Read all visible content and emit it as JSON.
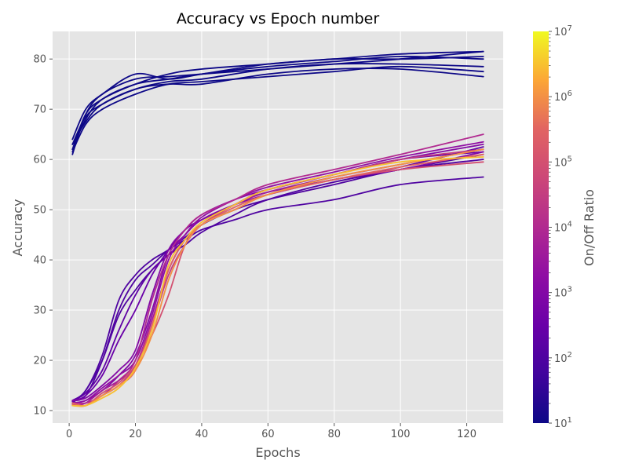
{
  "chart_data": {
    "type": "line",
    "title": "Accuracy vs Epoch number",
    "xlabel": "Epochs",
    "ylabel": "Accuracy",
    "xlim": [
      -5,
      131
    ],
    "ylim": [
      7.5,
      85.5
    ],
    "xticks": [
      0,
      20,
      40,
      60,
      80,
      100,
      120
    ],
    "yticks": [
      10,
      20,
      30,
      40,
      50,
      60,
      70,
      80
    ],
    "grid": true,
    "style": "ggplot",
    "colorbar": {
      "label": "On/Off Ratio",
      "scale": "log",
      "range": [
        10,
        10000000
      ],
      "tick_exponents": [
        1,
        2,
        3,
        4,
        5,
        6,
        7
      ],
      "tick_base": "10",
      "colormap": "plasma"
    },
    "series": [
      {
        "onoff": 10,
        "x": [
          1,
          5,
          10,
          20,
          30,
          40,
          60,
          80,
          100,
          125
        ],
        "y": [
          61,
          69,
          73,
          76,
          76.5,
          77,
          78,
          79,
          80,
          81.5
        ]
      },
      {
        "onoff": 10,
        "x": [
          1,
          5,
          10,
          20,
          30,
          40,
          60,
          80,
          100,
          125
        ],
        "y": [
          62,
          68,
          72,
          75,
          76,
          77,
          78.5,
          79.5,
          80.5,
          80
        ]
      },
      {
        "onoff": 10,
        "x": [
          1,
          5,
          10,
          20,
          30,
          40,
          60,
          80,
          100,
          125
        ],
        "y": [
          63,
          68.5,
          71,
          74,
          75.5,
          76,
          78,
          79,
          79,
          78.5
        ]
      },
      {
        "onoff": 10,
        "x": [
          1,
          5,
          10,
          20,
          30,
          40,
          60,
          80,
          100,
          125
        ],
        "y": [
          64,
          70,
          73,
          77,
          76,
          77,
          79,
          80,
          81,
          81.5
        ]
      },
      {
        "onoff": 10,
        "x": [
          1,
          5,
          10,
          20,
          30,
          40,
          60,
          80,
          100,
          125
        ],
        "y": [
          61.5,
          67,
          70,
          73,
          75,
          75.5,
          76.5,
          77.5,
          78.5,
          77.5
        ]
      },
      {
        "onoff": 10,
        "x": [
          1,
          5,
          10,
          20,
          30,
          40,
          60,
          80,
          100,
          125
        ],
        "y": [
          63,
          67.5,
          71,
          74,
          75,
          75,
          77,
          78,
          78,
          76.5
        ]
      },
      {
        "onoff": 10,
        "x": [
          1,
          5,
          10,
          20,
          30,
          40,
          60,
          80,
          100,
          125
        ],
        "y": [
          62,
          69,
          72,
          75,
          77,
          78,
          79,
          80,
          80,
          80.5
        ]
      },
      {
        "onoff": 100,
        "x": [
          1,
          5,
          10,
          15,
          20,
          25,
          30,
          35,
          40,
          50,
          60,
          80,
          100,
          125
        ],
        "y": [
          12,
          13,
          20,
          30,
          36,
          39,
          42,
          44,
          46,
          48,
          50,
          52,
          55,
          56.5
        ]
      },
      {
        "onoff": 100,
        "x": [
          1,
          5,
          10,
          15,
          20,
          25,
          30,
          35,
          40,
          50,
          60,
          80,
          100,
          125
        ],
        "y": [
          12,
          14,
          21,
          32,
          37,
          40,
          42,
          44.5,
          47,
          50,
          52,
          55,
          58,
          60
        ]
      },
      {
        "onoff": 100,
        "x": [
          1,
          5,
          10,
          15,
          20,
          25,
          30,
          35,
          40,
          50,
          60,
          80,
          100,
          125
        ],
        "y": [
          11.5,
          14,
          20,
          29,
          34,
          38,
          41,
          43,
          45.5,
          49,
          52,
          55.5,
          58,
          61
        ]
      },
      {
        "onoff": 200,
        "x": [
          1,
          5,
          10,
          15,
          20,
          25,
          30,
          35,
          40,
          50,
          60,
          80,
          100,
          125
        ],
        "y": [
          12,
          13.5,
          18,
          26,
          33,
          38,
          41,
          44,
          47,
          51,
          53.5,
          56,
          58.5,
          62.5
        ]
      },
      {
        "onoff": 300,
        "x": [
          1,
          5,
          10,
          15,
          20,
          25,
          30,
          35,
          40,
          50,
          60,
          80,
          100,
          125
        ],
        "y": [
          11.8,
          13,
          17,
          24,
          30,
          37,
          42,
          46,
          48,
          51,
          54,
          57,
          60,
          61.5
        ]
      },
      {
        "onoff": 1000,
        "x": [
          1,
          5,
          10,
          15,
          20,
          25,
          30,
          35,
          40,
          50,
          60,
          80,
          100,
          125
        ],
        "y": [
          12,
          12.5,
          15,
          18,
          22,
          33,
          42,
          46,
          49,
          52,
          54,
          57,
          60,
          63
        ]
      },
      {
        "onoff": 1000,
        "x": [
          1,
          5,
          10,
          15,
          20,
          25,
          30,
          35,
          40,
          50,
          60,
          80,
          100,
          125
        ],
        "y": [
          11.5,
          12,
          14,
          17,
          21,
          30,
          41,
          45,
          48,
          51,
          53,
          56,
          58,
          61.5
        ]
      },
      {
        "onoff": 2000,
        "x": [
          1,
          5,
          10,
          15,
          20,
          25,
          30,
          35,
          40,
          50,
          60,
          80,
          100,
          125
        ],
        "y": [
          11.5,
          12,
          14.5,
          17,
          20,
          29,
          40,
          45,
          48.5,
          52,
          54.5,
          57.5,
          60.5,
          63.5
        ]
      },
      {
        "onoff": 5000,
        "x": [
          1,
          5,
          10,
          15,
          20,
          25,
          30,
          35,
          40,
          50,
          60,
          80,
          100,
          125
        ],
        "y": [
          11,
          11.5,
          14,
          16,
          19,
          28,
          38,
          44,
          47,
          51,
          53.5,
          56.5,
          59,
          62
        ]
      },
      {
        "onoff": 10000,
        "x": [
          1,
          5,
          10,
          15,
          20,
          25,
          30,
          35,
          40,
          50,
          60,
          80,
          100,
          125
        ],
        "y": [
          11.5,
          11.5,
          13,
          16,
          20,
          32,
          41,
          46,
          49,
          52,
          55,
          58,
          61,
          65
        ]
      },
      {
        "onoff": 30000,
        "x": [
          1,
          5,
          10,
          15,
          20,
          25,
          30,
          35,
          40,
          50,
          60,
          80,
          100,
          125
        ],
        "y": [
          11.5,
          11,
          13,
          15,
          19,
          27,
          37,
          43,
          47,
          51,
          54,
          57,
          60,
          62
        ]
      },
      {
        "onoff": 100000,
        "x": [
          1,
          5,
          10,
          15,
          20,
          25,
          30,
          35,
          40,
          50,
          60,
          80,
          100,
          125
        ],
        "y": [
          11.2,
          11,
          13.5,
          15.5,
          19,
          25,
          33,
          43,
          47,
          50,
          53,
          56,
          58,
          59.5
        ]
      },
      {
        "onoff": 300000,
        "x": [
          1,
          5,
          10,
          15,
          20,
          25,
          30,
          35,
          40,
          50,
          60,
          80,
          100,
          125
        ],
        "y": [
          11.5,
          11,
          13,
          15,
          18,
          27,
          38,
          44,
          47,
          50.5,
          53,
          56,
          58.5,
          61
        ]
      },
      {
        "onoff": 1000000,
        "x": [
          1,
          5,
          10,
          15,
          20,
          25,
          30,
          35,
          40,
          50,
          60,
          80,
          100,
          125
        ],
        "y": [
          11,
          11,
          13,
          15,
          18,
          25,
          36,
          43,
          47,
          50,
          53,
          56.5,
          59,
          62
        ]
      },
      {
        "onoff": 3000000,
        "x": [
          1,
          5,
          10,
          15,
          20,
          25,
          30,
          35,
          40,
          50,
          60,
          80,
          100,
          125
        ],
        "y": [
          11,
          11,
          12.5,
          14.5,
          18.5,
          26,
          39,
          44,
          47.5,
          51,
          54,
          57,
          59.5,
          60.5
        ]
      }
    ]
  }
}
